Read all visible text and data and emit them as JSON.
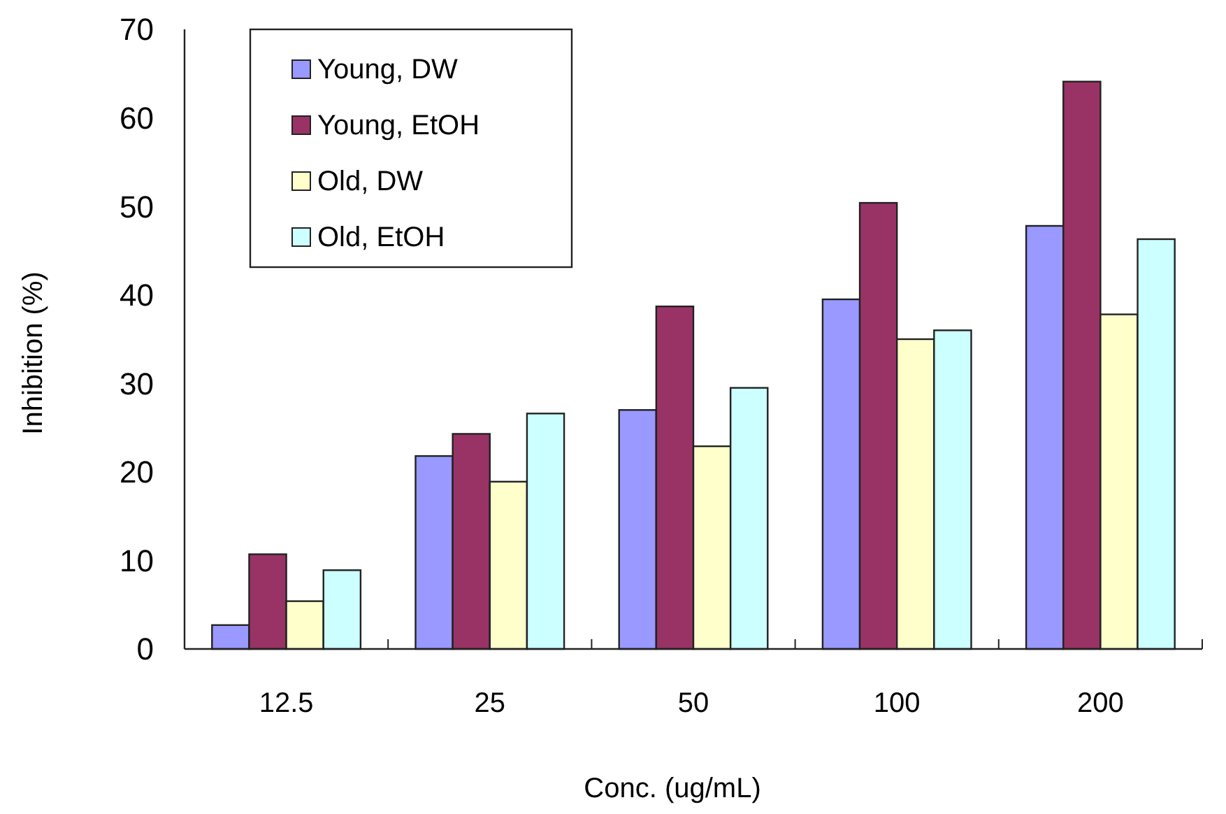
{
  "chart_data": {
    "type": "bar",
    "xlabel": "Conc. (ug/mL)",
    "ylabel": "Inhibition (%)",
    "categories": [
      "12.5",
      "25",
      "50",
      "100",
      "200"
    ],
    "series": [
      {
        "name": "Young, DW",
        "color": "#9999ff",
        "values": [
          2.7,
          21.8,
          27.0,
          39.5,
          47.8
        ]
      },
      {
        "name": "Young, EtOH",
        "color": "#993366",
        "values": [
          10.7,
          24.3,
          38.7,
          50.4,
          64.1
        ]
      },
      {
        "name": "Old, DW",
        "color": "#ffffcc",
        "values": [
          5.4,
          18.9,
          22.9,
          35.0,
          37.8
        ]
      },
      {
        "name": "Old, EtOH",
        "color": "#ccffff",
        "values": [
          8.9,
          26.6,
          29.5,
          36.0,
          46.3
        ]
      }
    ],
    "ylim": [
      0,
      70
    ],
    "yticks": [
      0,
      10,
      20,
      30,
      40,
      50,
      60,
      70
    ],
    "grid": false,
    "legend": "top left"
  }
}
